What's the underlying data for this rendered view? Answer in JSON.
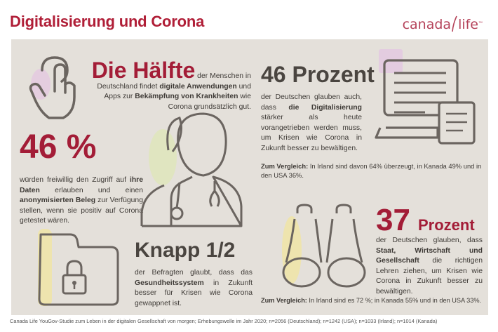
{
  "header": {
    "title": "Digitalisierung und Corona",
    "logo_left": "canada",
    "logo_right": "life",
    "logo_tm": "™"
  },
  "block1": {
    "headline": "Die Hälfte",
    "text_1": " der Menschen in Deutschland findet ",
    "bold_1": "digitale Anwendungen",
    "text_2": " und Apps zur ",
    "bold_2": "Bekämpfung von Krankheiten",
    "text_3": " wie Corona grundsätzlich gut."
  },
  "block2": {
    "headline": "46 Prozent",
    "text_1": "der Deutschen glauben auch, dass ",
    "bold_1": "die Digitalisierung",
    "text_2": " stärker als heute vorangetrieben werden muss, um Krisen wie Corona in Zukunft besser zu bewältigen.",
    "compare_label": "Zum Vergleich:",
    "compare_text": " In Irland sind davon 64% überzeugt, in Kanada 49% und in den USA 36%."
  },
  "block3": {
    "headline": "46 %",
    "text_1": "würden freiwillig den Zugriff auf ",
    "bold_1": "ihre Daten",
    "text_2": " erlauben und einen ",
    "bold_2": "anonymisierten Beleg",
    "text_3": " zur Verfügung stellen, wenn sie positiv auf Corona getestet wären."
  },
  "block4": {
    "headline_1": "37",
    "headline_2": "Prozent",
    "text_1": "der Deutschen glauben, dass ",
    "bold_1": "Staat, Wirtschaft und Gesellschaft",
    "text_2": " die richtigen Lehren ziehen, um Krisen wie Corona in Zukunft besser zu bewältigen.",
    "compare_label": "Zum Vergleich:",
    "compare_text": " In Irland sind es 72 %; in Kanada 55% und in den USA 33%."
  },
  "block5": {
    "headline": "Knapp 1/2",
    "text_1": "der Befragten glaubt, dass das ",
    "bold_1": "Gesundheitssystem",
    "text_2": " in Zukunft besser für Krisen wie Corona gewappnet ist."
  },
  "footer": {
    "source": "Canada Life YouGov-Studie zum Leben in der digitalen Gesellschaft von morgen; Erhebungswelle im Jahr 2020; n=2056 (Deutschland); n=1242 (USA); n=1033 (Irland); n=1014 (Kanada)"
  },
  "colors": {
    "brand_red": "#b01e37",
    "panel": "#e4e0da",
    "icon_line": "#6b6560",
    "accent_purple": "#e3c8e0",
    "accent_yellow": "#eee4a8",
    "accent_green": "#dfe6bd"
  }
}
